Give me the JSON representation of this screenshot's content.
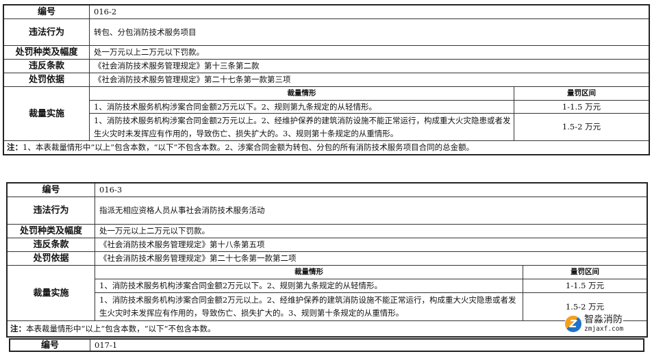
{
  "tables": [
    {
      "id_label": "编号",
      "id_value": "016-2",
      "violation_label": "违法行为",
      "violation_value": "转包、分包消防技术服务项目",
      "penalty_label": "处罚种类及幅度",
      "penalty_value": "处一万元以上二万元以下罚款。",
      "violated_label": "违反条款",
      "violated_value": "《社会消防技术服务管理规定》第十三条第二款",
      "basis_label": "处罚依据",
      "basis_value": "《社会消防技术服务管理规定》第二十七条第一款第三项",
      "discretion_label": "裁量实施",
      "col_situation": "裁量情形",
      "col_range": "量罚区间",
      "rows": [
        {
          "situation": "1、消防技术服务机构涉案合同金额2万元以下。2、规则第九条规定的从轻情形。",
          "range": "1-1.5 万元"
        },
        {
          "situation": "1、消防技术服务机构涉案合同金额2万元以上。2、经维护保养的建筑消防设施不能正常运行，构成重大火灾隐患或者发生火灾时未发挥应有作用的，导致伤亡、损失扩大的。3、规则第十条规定的从重情形。",
          "range": "1.5-2 万元"
        }
      ],
      "note_label": "注：",
      "note": "1、本表裁量情形中“以上”包含本数，“以下”不包含本数。2、涉案合同金额为转包、分包的所有消防技术服务项目合同的总金额。"
    },
    {
      "id_label": "编号",
      "id_value": "016-3",
      "violation_label": "违法行为",
      "violation_value": "指派无相应资格人员从事社会消防技术服务活动",
      "penalty_label": "处罚种类及幅度",
      "penalty_value": "处一万元以上二万元以下罚款。",
      "violated_label": "违反条款",
      "violated_value": "《社会消防技术服务管理规定》第十八条第五项",
      "basis_label": "处罚依据",
      "basis_value": "《社会消防技术服务管理规定》第二十七条第一款第二项",
      "discretion_label": "裁量实施",
      "col_situation": "裁量情形",
      "col_range": "量罚区间",
      "rows": [
        {
          "situation": "1、消防技术服务机构涉案合同金额2万元以下。2、规则第九条规定的从轻情形。",
          "range": "1-1.5 万元"
        },
        {
          "situation": "1、消防技术服务机构涉案合同金额2万元以上。2、经维护保养的建筑消防设施不能正常运行，构成重大火灾隐患或者发生火灾时未发挥应有作用的，导致伤亡、损失扩大的。3、规则第十条规定的从重情形。",
          "range": "1.5-2 万元"
        }
      ],
      "note_label": "注：",
      "note": "本表裁量情形中“以上”包含本数，“以下”不包含本数。"
    },
    {
      "id_label": "编号",
      "id_value": "017-1"
    }
  ],
  "watermark": {
    "name": "智淼消防",
    "url": "zmjaxf.com",
    "colors": [
      "#f4a11c",
      "#1e73c8"
    ]
  }
}
